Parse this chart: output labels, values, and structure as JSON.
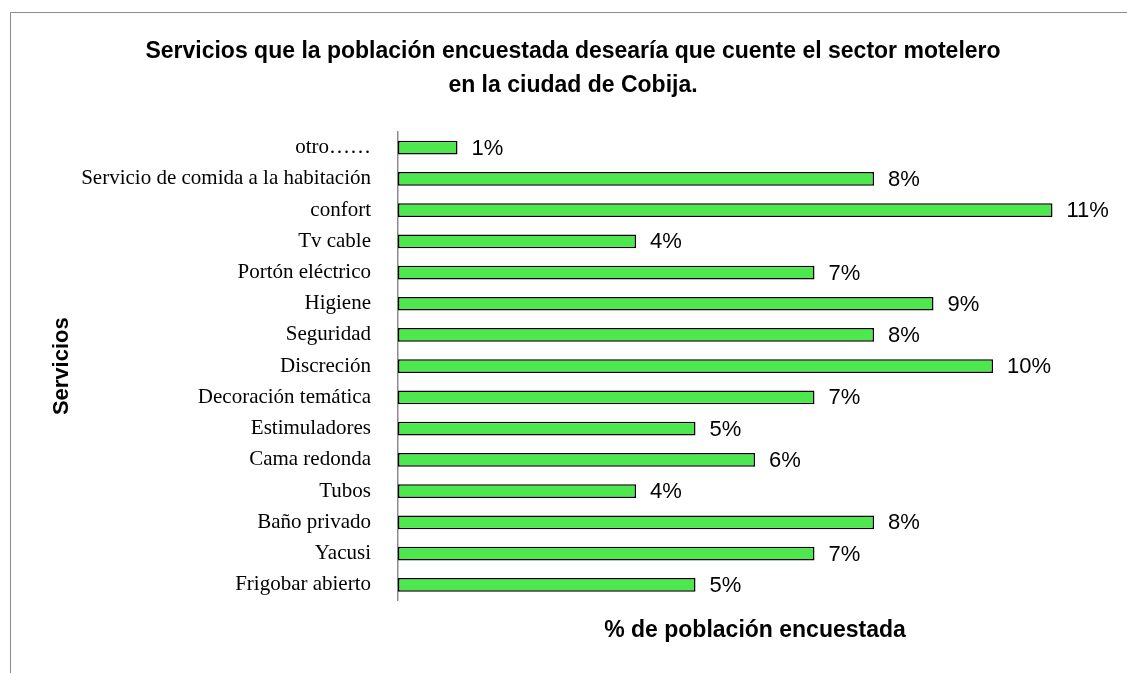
{
  "chart_data": {
    "type": "bar",
    "orientation": "horizontal",
    "title": "Servicios que la población encuestada desearía que cuente el sector motelero en la ciudad de Cobija.",
    "xlabel": "% de población encuestada",
    "ylabel": "Servicios",
    "tick_labels": "y",
    "categories": [
      "otro……",
      "Servicio de comida a la habitación",
      "confort",
      "Tv cable",
      "Portón eléctrico",
      "Higiene",
      "Seguridad",
      "Discreción",
      "Decoración temática",
      "Estimuladores",
      "Cama redonda",
      "Tubos",
      "Baño privado",
      "Yacusi",
      "Frigobar abierto"
    ],
    "values": [
      1,
      8,
      11,
      4,
      7,
      9,
      8,
      10,
      7,
      5,
      6,
      4,
      8,
      7,
      5
    ],
    "value_labels": [
      "1%",
      "8%",
      "11%",
      "4%",
      "7%",
      "9%",
      "8%",
      "10%",
      "7%",
      "5%",
      "6%",
      "4%",
      "8%",
      "7%",
      "5%"
    ],
    "color": "#4de84d"
  }
}
